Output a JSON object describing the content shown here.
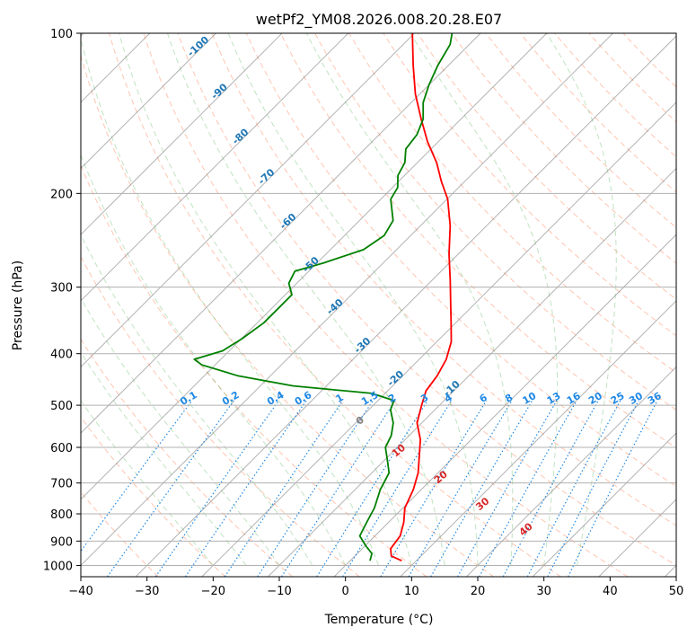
{
  "chart_data": {
    "type": "skew-t",
    "title": "wetPf2_YM08.2026.008.20.28.E07",
    "xlabel": "Temperature (°C)",
    "ylabel": "Pressure (hPa)",
    "xlim": [
      -40,
      50
    ],
    "ylim_hpa": [
      1050,
      100
    ],
    "x_ticks": [
      -40,
      -30,
      -20,
      -10,
      0,
      10,
      20,
      30,
      40,
      50
    ],
    "y_ticks": [
      100,
      200,
      300,
      400,
      500,
      600,
      700,
      800,
      900,
      1000
    ],
    "grid": true,
    "series": [
      {
        "color": "#ff0000",
        "points": [
          {
            "p": 980,
            "t": 7.8
          },
          {
            "p": 960,
            "t": 5.5
          },
          {
            "p": 930,
            "t": 4.3
          },
          {
            "p": 880,
            "t": 3.8
          },
          {
            "p": 830,
            "t": 2.3
          },
          {
            "p": 780,
            "t": 0.3
          },
          {
            "p": 720,
            "t": -1.2
          },
          {
            "p": 670,
            "t": -3.0
          },
          {
            "p": 630,
            "t": -5.0
          },
          {
            "p": 580,
            "t": -7.7
          },
          {
            "p": 540,
            "t": -10.7
          },
          {
            "p": 500,
            "t": -12.7
          },
          {
            "p": 470,
            "t": -14.2
          },
          {
            "p": 440,
            "t": -14.8
          },
          {
            "p": 410,
            "t": -15.9
          },
          {
            "p": 380,
            "t": -17.8
          },
          {
            "p": 350,
            "t": -20.7
          },
          {
            "p": 320,
            "t": -23.9
          },
          {
            "p": 290,
            "t": -27.4
          },
          {
            "p": 260,
            "t": -31.4
          },
          {
            "p": 230,
            "t": -35.5
          },
          {
            "p": 205,
            "t": -39.9
          },
          {
            "p": 190,
            "t": -43.5
          },
          {
            "p": 175,
            "t": -47.1
          },
          {
            "p": 160,
            "t": -51.6
          },
          {
            "p": 145,
            "t": -56.0
          },
          {
            "p": 130,
            "t": -60.7
          },
          {
            "p": 115,
            "t": -65.3
          },
          {
            "p": 100,
            "t": -70.3
          }
        ]
      },
      {
        "color": "#008000",
        "points": [
          {
            "p": 980,
            "t": 3.0
          },
          {
            "p": 950,
            "t": 2.2
          },
          {
            "p": 920,
            "t": 0.2
          },
          {
            "p": 880,
            "t": -2.3
          },
          {
            "p": 830,
            "t": -3.3
          },
          {
            "p": 780,
            "t": -4.3
          },
          {
            "p": 720,
            "t": -6.2
          },
          {
            "p": 670,
            "t": -7.4
          },
          {
            "p": 640,
            "t": -9.2
          },
          {
            "p": 600,
            "t": -11.8
          },
          {
            "p": 570,
            "t": -12.7
          },
          {
            "p": 540,
            "t": -14.3
          },
          {
            "p": 510,
            "t": -16.7
          },
          {
            "p": 490,
            "t": -17.6
          },
          {
            "p": 475,
            "t": -22.0
          },
          {
            "p": 460,
            "t": -35.0
          },
          {
            "p": 440,
            "t": -45.0
          },
          {
            "p": 420,
            "t": -52.0
          },
          {
            "p": 410,
            "t": -54.0
          },
          {
            "p": 395,
            "t": -51.0
          },
          {
            "p": 375,
            "t": -49.9
          },
          {
            "p": 350,
            "t": -49.0
          },
          {
            "p": 330,
            "t": -49.0
          },
          {
            "p": 310,
            "t": -49.0
          },
          {
            "p": 295,
            "t": -51.2
          },
          {
            "p": 280,
            "t": -52.1
          },
          {
            "p": 270,
            "t": -49.0
          },
          {
            "p": 255,
            "t": -45.0
          },
          {
            "p": 240,
            "t": -44.0
          },
          {
            "p": 225,
            "t": -44.9
          },
          {
            "p": 205,
            "t": -48.5
          },
          {
            "p": 195,
            "t": -49.2
          },
          {
            "p": 185,
            "t": -51.0
          },
          {
            "p": 175,
            "t": -51.9
          },
          {
            "p": 165,
            "t": -53.8
          },
          {
            "p": 155,
            "t": -54.3
          },
          {
            "p": 145,
            "t": -55.7
          },
          {
            "p": 135,
            "t": -58.2
          },
          {
            "p": 125,
            "t": -60.0
          },
          {
            "p": 115,
            "t": -61.6
          },
          {
            "p": 105,
            "t": -62.9
          },
          {
            "p": 100,
            "t": -64.3
          }
        ]
      }
    ],
    "annotations": {
      "isotherm_labels": [
        "-100",
        "-90",
        "-80",
        "-70",
        "-60",
        "-50",
        "-40",
        "-30",
        "-20",
        "-10"
      ],
      "isotherm_values": [
        -100,
        -90,
        -80,
        -70,
        -60,
        -50,
        -40,
        -30,
        -20,
        -10
      ],
      "mixing_ratio_labels": [
        "0.1",
        "0.2",
        "0.4",
        "0.6",
        "1",
        "1.5",
        "2",
        "3",
        "4",
        "6",
        "8",
        "10",
        "13",
        "16",
        "20",
        "25",
        "30",
        "36"
      ],
      "moist_adiabat_labels": [
        "0",
        "10",
        "20",
        "30",
        "40"
      ],
      "moist_adiabat_values": [
        0,
        10,
        20,
        30,
        40
      ]
    },
    "colors": {
      "temperature": "#ff0000",
      "dewpoint": "#008000",
      "isotherm_label": "#1f77b4",
      "mixing_ratio": "#1e88e5",
      "moist_adiabat_label": "#d62728",
      "zero_label": "#808080"
    }
  }
}
